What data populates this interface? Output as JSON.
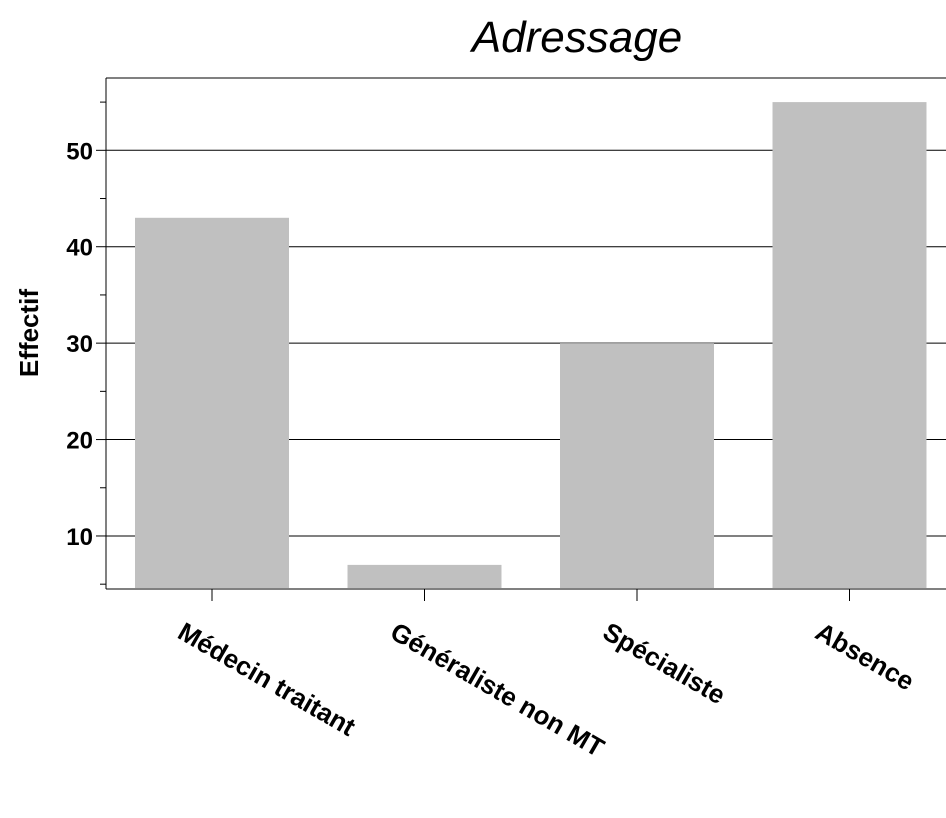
{
  "chart_data": {
    "type": "bar",
    "title": "Adressage",
    "xlabel": "",
    "ylabel": "Effectif",
    "categories": [
      "Médecin traitant",
      "Généraliste non MT",
      "Spécialiste",
      "Absence"
    ],
    "values": [
      43,
      7,
      30,
      55
    ],
    "ylim": [
      4.5,
      57.5
    ],
    "yticks_major": [
      10,
      20,
      30,
      40,
      50
    ],
    "yticks_minor": [
      5,
      15,
      25,
      35,
      45,
      55
    ],
    "grid": "horizontal major gridlines",
    "bar_color": "#c0c0c0",
    "legend": "none"
  }
}
